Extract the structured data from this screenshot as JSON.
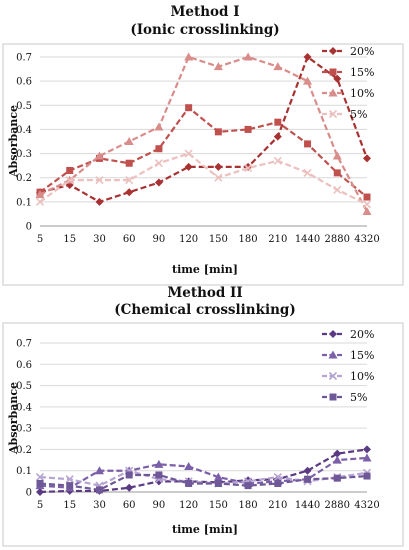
{
  "chart_data": [
    {
      "type": "line",
      "title": "Method I",
      "subtitle": "(Ionic crosslinking)",
      "xlabel": "time [min]",
      "ylabel": "Absorbance",
      "categories": [
        "5",
        "15",
        "30",
        "60",
        "90",
        "120",
        "150",
        "180",
        "210",
        "1440",
        "2880",
        "4320"
      ],
      "ylim": [
        0,
        0.7
      ],
      "yticks": [
        "0",
        "0.1",
        "0.2",
        "0.3",
        "0.4",
        "0.5",
        "0.6",
        "0.7"
      ],
      "grid": true,
      "legend_position": "top-right",
      "series": [
        {
          "name": "20%",
          "color": "#a83232",
          "marker": "diamond",
          "values": [
            0.14,
            0.17,
            0.1,
            0.14,
            0.18,
            0.245,
            0.245,
            0.245,
            0.37,
            0.7,
            0.61,
            0.28
          ]
        },
        {
          "name": "15%",
          "color": "#c0504d",
          "marker": "square",
          "values": [
            0.14,
            0.23,
            0.28,
            0.26,
            0.32,
            0.49,
            0.39,
            0.4,
            0.43,
            0.34,
            0.22,
            0.12
          ]
        },
        {
          "name": "10%",
          "color": "#d98d8a",
          "marker": "triangle",
          "values": [
            0.13,
            0.19,
            0.29,
            0.35,
            0.41,
            0.7,
            0.66,
            0.7,
            0.66,
            0.6,
            0.29,
            0.06
          ]
        },
        {
          "name": "5%",
          "color": "#ecc0bf",
          "marker": "x",
          "values": [
            0.1,
            0.19,
            0.19,
            0.19,
            0.26,
            0.3,
            0.2,
            0.24,
            0.27,
            0.22,
            0.15,
            0.09
          ]
        }
      ]
    },
    {
      "type": "line",
      "title": "Method II",
      "subtitle": "(Chemical crosslinking)",
      "xlabel": "time [min]",
      "ylabel": "Absorbance",
      "categories": [
        "5",
        "15",
        "30",
        "60",
        "90",
        "120",
        "150",
        "180",
        "210",
        "1440",
        "2880",
        "4320"
      ],
      "ylim": [
        0,
        0.7
      ],
      "yticks": [
        "0",
        "0.1",
        "0.2",
        "0.3",
        "0.4",
        "0.5",
        "0.6",
        "0.7"
      ],
      "grid": true,
      "legend_position": "top-right",
      "series": [
        {
          "name": "20%",
          "color": "#5b3a84",
          "marker": "diamond",
          "values": [
            0.0,
            0.005,
            0.005,
            0.02,
            0.05,
            0.05,
            0.045,
            0.055,
            0.06,
            0.1,
            0.18,
            0.2
          ]
        },
        {
          "name": "15%",
          "color": "#7b5fa8",
          "marker": "triangle",
          "values": [
            0.03,
            0.02,
            0.1,
            0.1,
            0.13,
            0.12,
            0.07,
            0.04,
            0.05,
            0.06,
            0.15,
            0.16
          ]
        },
        {
          "name": "10%",
          "color": "#b6a4d2",
          "marker": "x",
          "values": [
            0.07,
            0.06,
            0.03,
            0.1,
            0.06,
            0.05,
            0.04,
            0.05,
            0.07,
            0.05,
            0.07,
            0.09
          ]
        },
        {
          "name": "5%",
          "color": "#6e5898",
          "marker": "square",
          "values": [
            0.04,
            0.03,
            0.01,
            0.08,
            0.08,
            0.04,
            0.04,
            0.03,
            0.04,
            0.06,
            0.065,
            0.075
          ]
        }
      ]
    }
  ]
}
